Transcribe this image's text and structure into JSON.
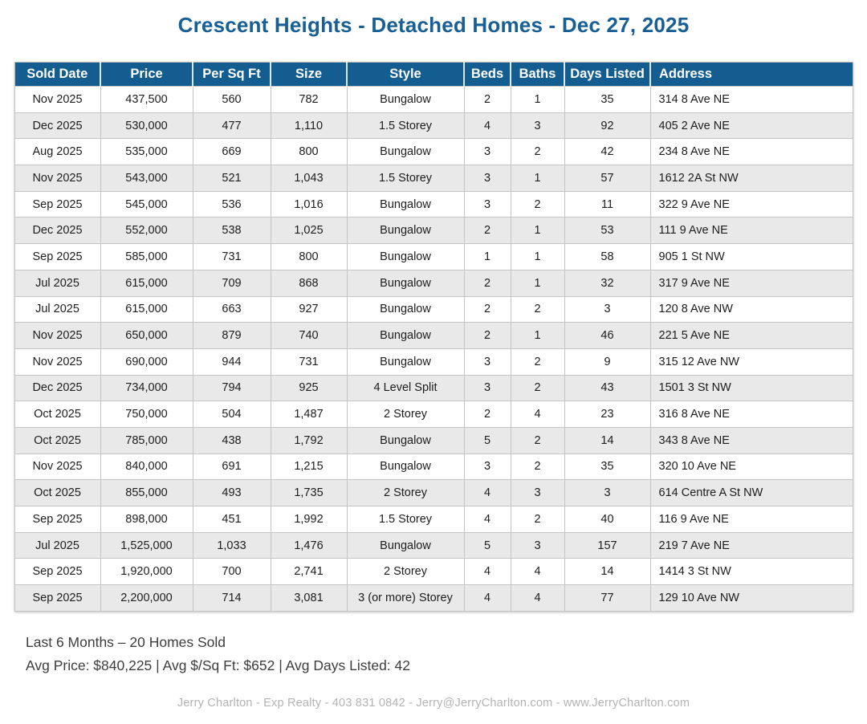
{
  "title": "Crescent Heights - Detached Homes - Dec 27, 2025",
  "colors": {
    "title_color": "#185F95",
    "header_bg": "#135D90",
    "row_alt": "#E9E9E9"
  },
  "table": {
    "columns": [
      "Sold Date",
      "Price",
      "Per Sq Ft",
      "Size",
      "Style",
      "Beds",
      "Baths",
      "Days Listed",
      "Address"
    ],
    "column_keys": [
      "sold-date",
      "price",
      "per-sq-ft",
      "size",
      "style",
      "beds",
      "baths",
      "days-listed",
      "address"
    ],
    "rows": [
      [
        "Nov 2025",
        "437,500",
        "560",
        "782",
        "Bungalow",
        "2",
        "1",
        "35",
        "314 8 Ave NE"
      ],
      [
        "Dec 2025",
        "530,000",
        "477",
        "1,110",
        "1.5 Storey",
        "4",
        "3",
        "92",
        "405 2 Ave NE"
      ],
      [
        "Aug 2025",
        "535,000",
        "669",
        "800",
        "Bungalow",
        "3",
        "2",
        "42",
        "234 8 Ave NE"
      ],
      [
        "Nov 2025",
        "543,000",
        "521",
        "1,043",
        "1.5 Storey",
        "3",
        "1",
        "57",
        "1612 2A St NW"
      ],
      [
        "Sep 2025",
        "545,000",
        "536",
        "1,016",
        "Bungalow",
        "3",
        "2",
        "11",
        "322 9 Ave NE"
      ],
      [
        "Dec 2025",
        "552,000",
        "538",
        "1,025",
        "Bungalow",
        "2",
        "1",
        "53",
        "111 9 Ave NE"
      ],
      [
        "Sep 2025",
        "585,000",
        "731",
        "800",
        "Bungalow",
        "1",
        "1",
        "58",
        "905 1 St NW"
      ],
      [
        "Jul 2025",
        "615,000",
        "709",
        "868",
        "Bungalow",
        "2",
        "1",
        "32",
        "317 9 Ave NE"
      ],
      [
        "Jul 2025",
        "615,000",
        "663",
        "927",
        "Bungalow",
        "2",
        "2",
        "3",
        "120 8 Ave NW"
      ],
      [
        "Nov 2025",
        "650,000",
        "879",
        "740",
        "Bungalow",
        "2",
        "1",
        "46",
        "221 5 Ave NE"
      ],
      [
        "Nov 2025",
        "690,000",
        "944",
        "731",
        "Bungalow",
        "3",
        "2",
        "9",
        "315 12 Ave NW"
      ],
      [
        "Dec 2025",
        "734,000",
        "794",
        "925",
        "4 Level Split",
        "3",
        "2",
        "43",
        "1501 3 St NW"
      ],
      [
        "Oct 2025",
        "750,000",
        "504",
        "1,487",
        "2 Storey",
        "2",
        "4",
        "23",
        "316 8 Ave NE"
      ],
      [
        "Oct 2025",
        "785,000",
        "438",
        "1,792",
        "Bungalow",
        "5",
        "2",
        "14",
        "343 8 Ave NE"
      ],
      [
        "Nov 2025",
        "840,000",
        "691",
        "1,215",
        "Bungalow",
        "3",
        "2",
        "35",
        "320 10 Ave NE"
      ],
      [
        "Oct 2025",
        "855,000",
        "493",
        "1,735",
        "2 Storey",
        "4",
        "3",
        "3",
        "614 Centre A St NW"
      ],
      [
        "Sep 2025",
        "898,000",
        "451",
        "1,992",
        "1.5 Storey",
        "4",
        "2",
        "40",
        "116 9 Ave NE"
      ],
      [
        "Jul 2025",
        "1,525,000",
        "1,033",
        "1,476",
        "Bungalow",
        "5",
        "3",
        "157",
        "219 7 Ave NE"
      ],
      [
        "Sep 2025",
        "1,920,000",
        "700",
        "2,741",
        "2 Storey",
        "4",
        "4",
        "14",
        "1414 3 St NW"
      ],
      [
        "Sep 2025",
        "2,200,000",
        "714",
        "3,081",
        "3 (or more) Storey",
        "4",
        "4",
        "77",
        "129 10 Ave NW"
      ]
    ]
  },
  "summary": {
    "line1": "Last 6 Months – 20 Homes Sold",
    "line2": "Avg Price: $840,225 | Avg $/Sq Ft: $652 | Avg Days Listed: 42"
  },
  "footer": "Jerry Charlton - Exp Realty - 403 831 0842 - Jerry@JerryCharlton.com - www.JerryCharlton.com"
}
